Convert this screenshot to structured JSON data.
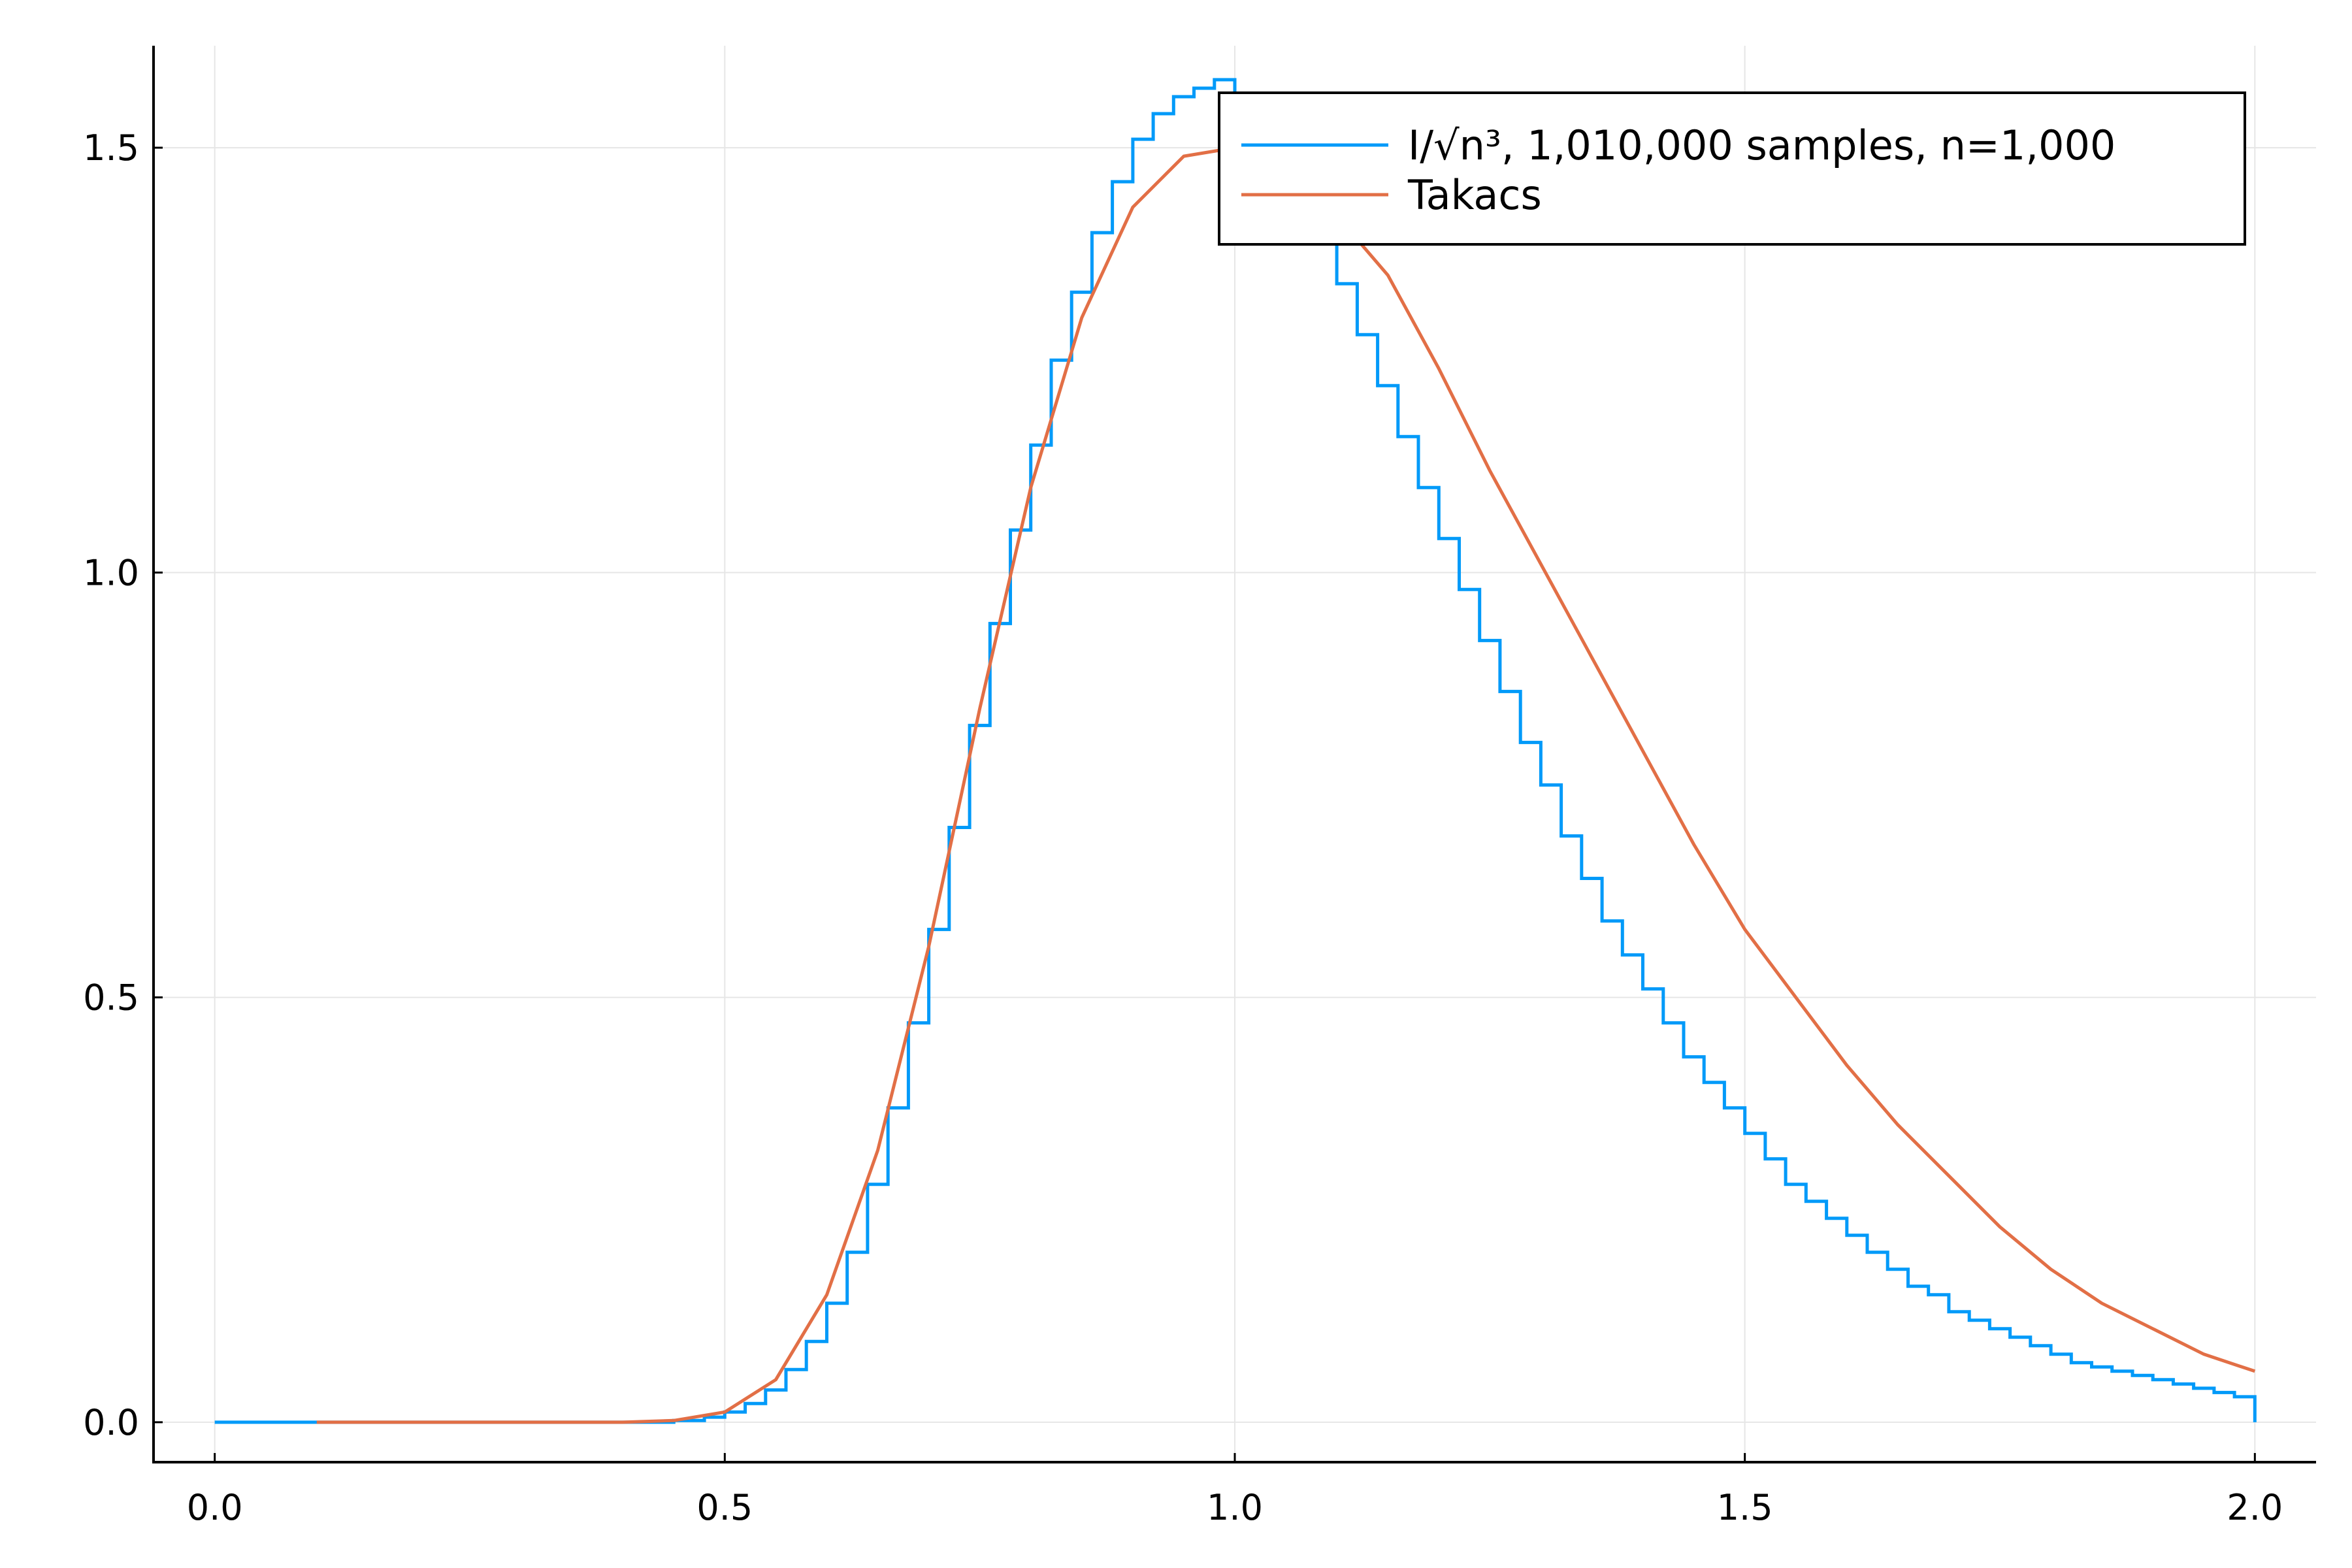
{
  "chart_data": {
    "type": "line",
    "title": "",
    "xlabel": "",
    "ylabel": "",
    "xlim": [
      -0.06,
      2.06
    ],
    "ylim": [
      -0.047,
      1.62
    ],
    "xticks": [
      0.0,
      0.5,
      1.0,
      1.5,
      2.0
    ],
    "xtick_labels": [
      "0.0",
      "0.5",
      "1.0",
      "1.5",
      "2.0"
    ],
    "yticks": [
      0.0,
      0.5,
      1.0,
      1.5
    ],
    "ytick_labels": [
      "0.0",
      "0.5",
      "1.0",
      "1.5"
    ],
    "grid": true,
    "legend_position": "top-right",
    "series": [
      {
        "name": "I/√n³, 1,010,000 samples, n=1,000",
        "kind": "step-histogram",
        "color": "#009af9",
        "x": [
          0.0,
          0.45,
          0.48,
          0.5,
          0.52,
          0.54,
          0.56,
          0.58,
          0.6,
          0.62,
          0.64,
          0.66,
          0.68,
          0.7,
          0.72,
          0.74,
          0.76,
          0.78,
          0.8,
          0.82,
          0.84,
          0.86,
          0.88,
          0.9,
          0.92,
          0.94,
          0.96,
          0.98,
          1.0,
          1.02,
          1.04,
          1.06,
          1.08,
          1.1,
          1.12,
          1.14,
          1.16,
          1.18,
          1.2,
          1.22,
          1.24,
          1.26,
          1.28,
          1.3,
          1.32,
          1.34,
          1.36,
          1.38,
          1.4,
          1.42,
          1.44,
          1.46,
          1.48,
          1.5,
          1.52,
          1.54,
          1.56,
          1.58,
          1.6,
          1.62,
          1.64,
          1.66,
          1.68,
          1.7,
          1.72,
          1.74,
          1.76,
          1.78,
          1.8,
          1.82,
          1.84,
          1.86,
          1.88,
          1.9,
          1.92,
          1.94,
          1.96,
          1.98,
          2.0
        ],
        "y": [
          0.0,
          0.002,
          0.006,
          0.012,
          0.022,
          0.038,
          0.062,
          0.095,
          0.14,
          0.2,
          0.28,
          0.37,
          0.47,
          0.58,
          0.7,
          0.82,
          0.94,
          1.05,
          1.15,
          1.25,
          1.33,
          1.4,
          1.46,
          1.51,
          1.54,
          1.56,
          1.57,
          1.58,
          1.56,
          1.53,
          1.49,
          1.44,
          1.39,
          1.34,
          1.28,
          1.22,
          1.16,
          1.1,
          1.04,
          0.98,
          0.92,
          0.86,
          0.8,
          0.75,
          0.69,
          0.64,
          0.59,
          0.55,
          0.51,
          0.47,
          0.43,
          0.4,
          0.37,
          0.34,
          0.31,
          0.28,
          0.26,
          0.24,
          0.22,
          0.2,
          0.18,
          0.16,
          0.15,
          0.13,
          0.12,
          0.11,
          0.1,
          0.09,
          0.08,
          0.07,
          0.065,
          0.06,
          0.055,
          0.05,
          0.045,
          0.04,
          0.035,
          0.03,
          0.025
        ]
      },
      {
        "name": "Takacs",
        "kind": "line",
        "color": "#e26f46",
        "x": [
          0.1,
          0.2,
          0.3,
          0.4,
          0.45,
          0.5,
          0.55,
          0.6,
          0.65,
          0.7,
          0.75,
          0.8,
          0.85,
          0.9,
          0.95,
          1.0,
          1.05,
          1.1,
          1.15,
          1.2,
          1.25,
          1.3,
          1.35,
          1.4,
          1.45,
          1.5,
          1.55,
          1.6,
          1.65,
          1.7,
          1.75,
          1.8,
          1.85,
          1.9,
          1.95,
          2.0
        ],
        "y": [
          0.0,
          0.0,
          0.0,
          0.0,
          0.002,
          0.012,
          0.05,
          0.15,
          0.32,
          0.56,
          0.84,
          1.1,
          1.3,
          1.43,
          1.49,
          1.5,
          1.47,
          1.42,
          1.35,
          1.24,
          1.12,
          1.01,
          0.9,
          0.79,
          0.68,
          0.58,
          0.5,
          0.42,
          0.35,
          0.29,
          0.23,
          0.18,
          0.14,
          0.11,
          0.08,
          0.06
        ]
      }
    ]
  }
}
